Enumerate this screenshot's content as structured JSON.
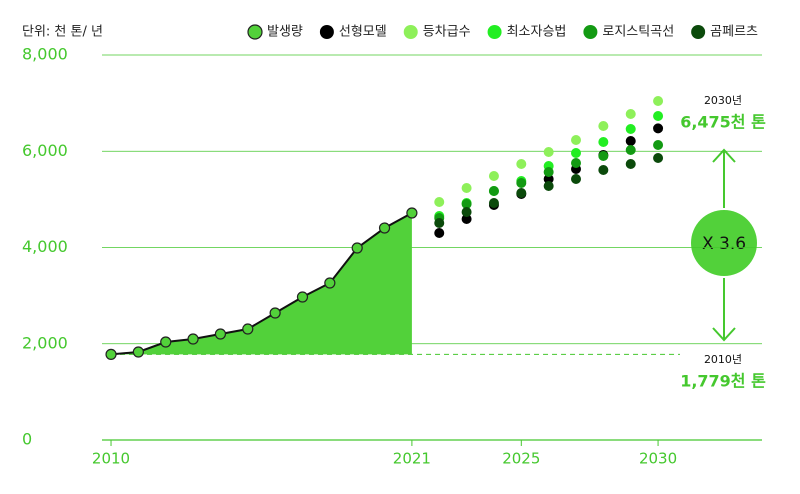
{
  "chart_data": {
    "type": "line",
    "unit_label": "단위: 천 톤/ 년",
    "x": [
      2010,
      2011,
      2012,
      2013,
      2014,
      2015,
      2016,
      2017,
      2018,
      2019,
      2020,
      2021,
      2022,
      2023,
      2024,
      2025,
      2026,
      2027,
      2028,
      2029,
      2030
    ],
    "xlim": [
      2009.67,
      2033.8
    ],
    "xticks": [
      2010,
      2021,
      2025,
      2030
    ],
    "ylim": [
      0,
      8000
    ],
    "yticks": [
      0,
      {
        "value": 2000,
        "label": "2,000"
      },
      {
        "value": 4000,
        "label": "4,000"
      },
      {
        "value": 6000,
        "label": "6,000"
      },
      {
        "value": 8000,
        "label": "8,000"
      }
    ],
    "grid": true,
    "series": [
      {
        "name": "발생량",
        "color": "#52d13a",
        "values": [
          1779,
          1829,
          2036,
          2099,
          2203,
          2306,
          2639,
          2971,
          3262,
          3990,
          4405,
          4717,
          null,
          null,
          null,
          null,
          null,
          null,
          null,
          null,
          null
        ]
      },
      {
        "name": "선형모델",
        "color": "#000000",
        "values": [
          null,
          null,
          null,
          null,
          null,
          null,
          null,
          null,
          null,
          null,
          null,
          null,
          4301,
          4592,
          4883,
          5112,
          5423,
          5631,
          5922,
          6213,
          6475
        ]
      },
      {
        "name": "등차급수",
        "color": "#8ef05a",
        "values": [
          null,
          null,
          null,
          null,
          null,
          null,
          null,
          null,
          null,
          null,
          null,
          null,
          4945,
          5236,
          5486,
          5735,
          5984,
          6234,
          6525,
          6774,
          7044
        ]
      },
      {
        "name": "최소자승법",
        "color": "#22ee22",
        "values": [
          null,
          null,
          null,
          null,
          null,
          null,
          null,
          null,
          null,
          null,
          null,
          null,
          4655,
          4925,
          5174,
          5382,
          5694,
          5964,
          6192,
          6462,
          6732
        ]
      },
      {
        "name": "로지스틱곡선",
        "color": "#139a13",
        "values": [
          null,
          null,
          null,
          null,
          null,
          null,
          null,
          null,
          null,
          null,
          null,
          null,
          4613,
          4904,
          5174,
          5340,
          5569,
          5756,
          5901,
          6026,
          6130
        ]
      },
      {
        "name": "곰페르츠",
        "color": "#0b4a0b",
        "values": [
          null,
          null,
          null,
          null,
          null,
          null,
          null,
          null,
          null,
          null,
          null,
          null,
          4509,
          4738,
          4925,
          5132,
          5278,
          5423,
          5610,
          5735,
          5860
        ]
      }
    ],
    "annotations": {
      "end_year": "2030년",
      "end_value": "6,475천 톤",
      "ratio": "X 3.6",
      "start_year": "2010년",
      "start_value": "1,779천 톤"
    }
  }
}
